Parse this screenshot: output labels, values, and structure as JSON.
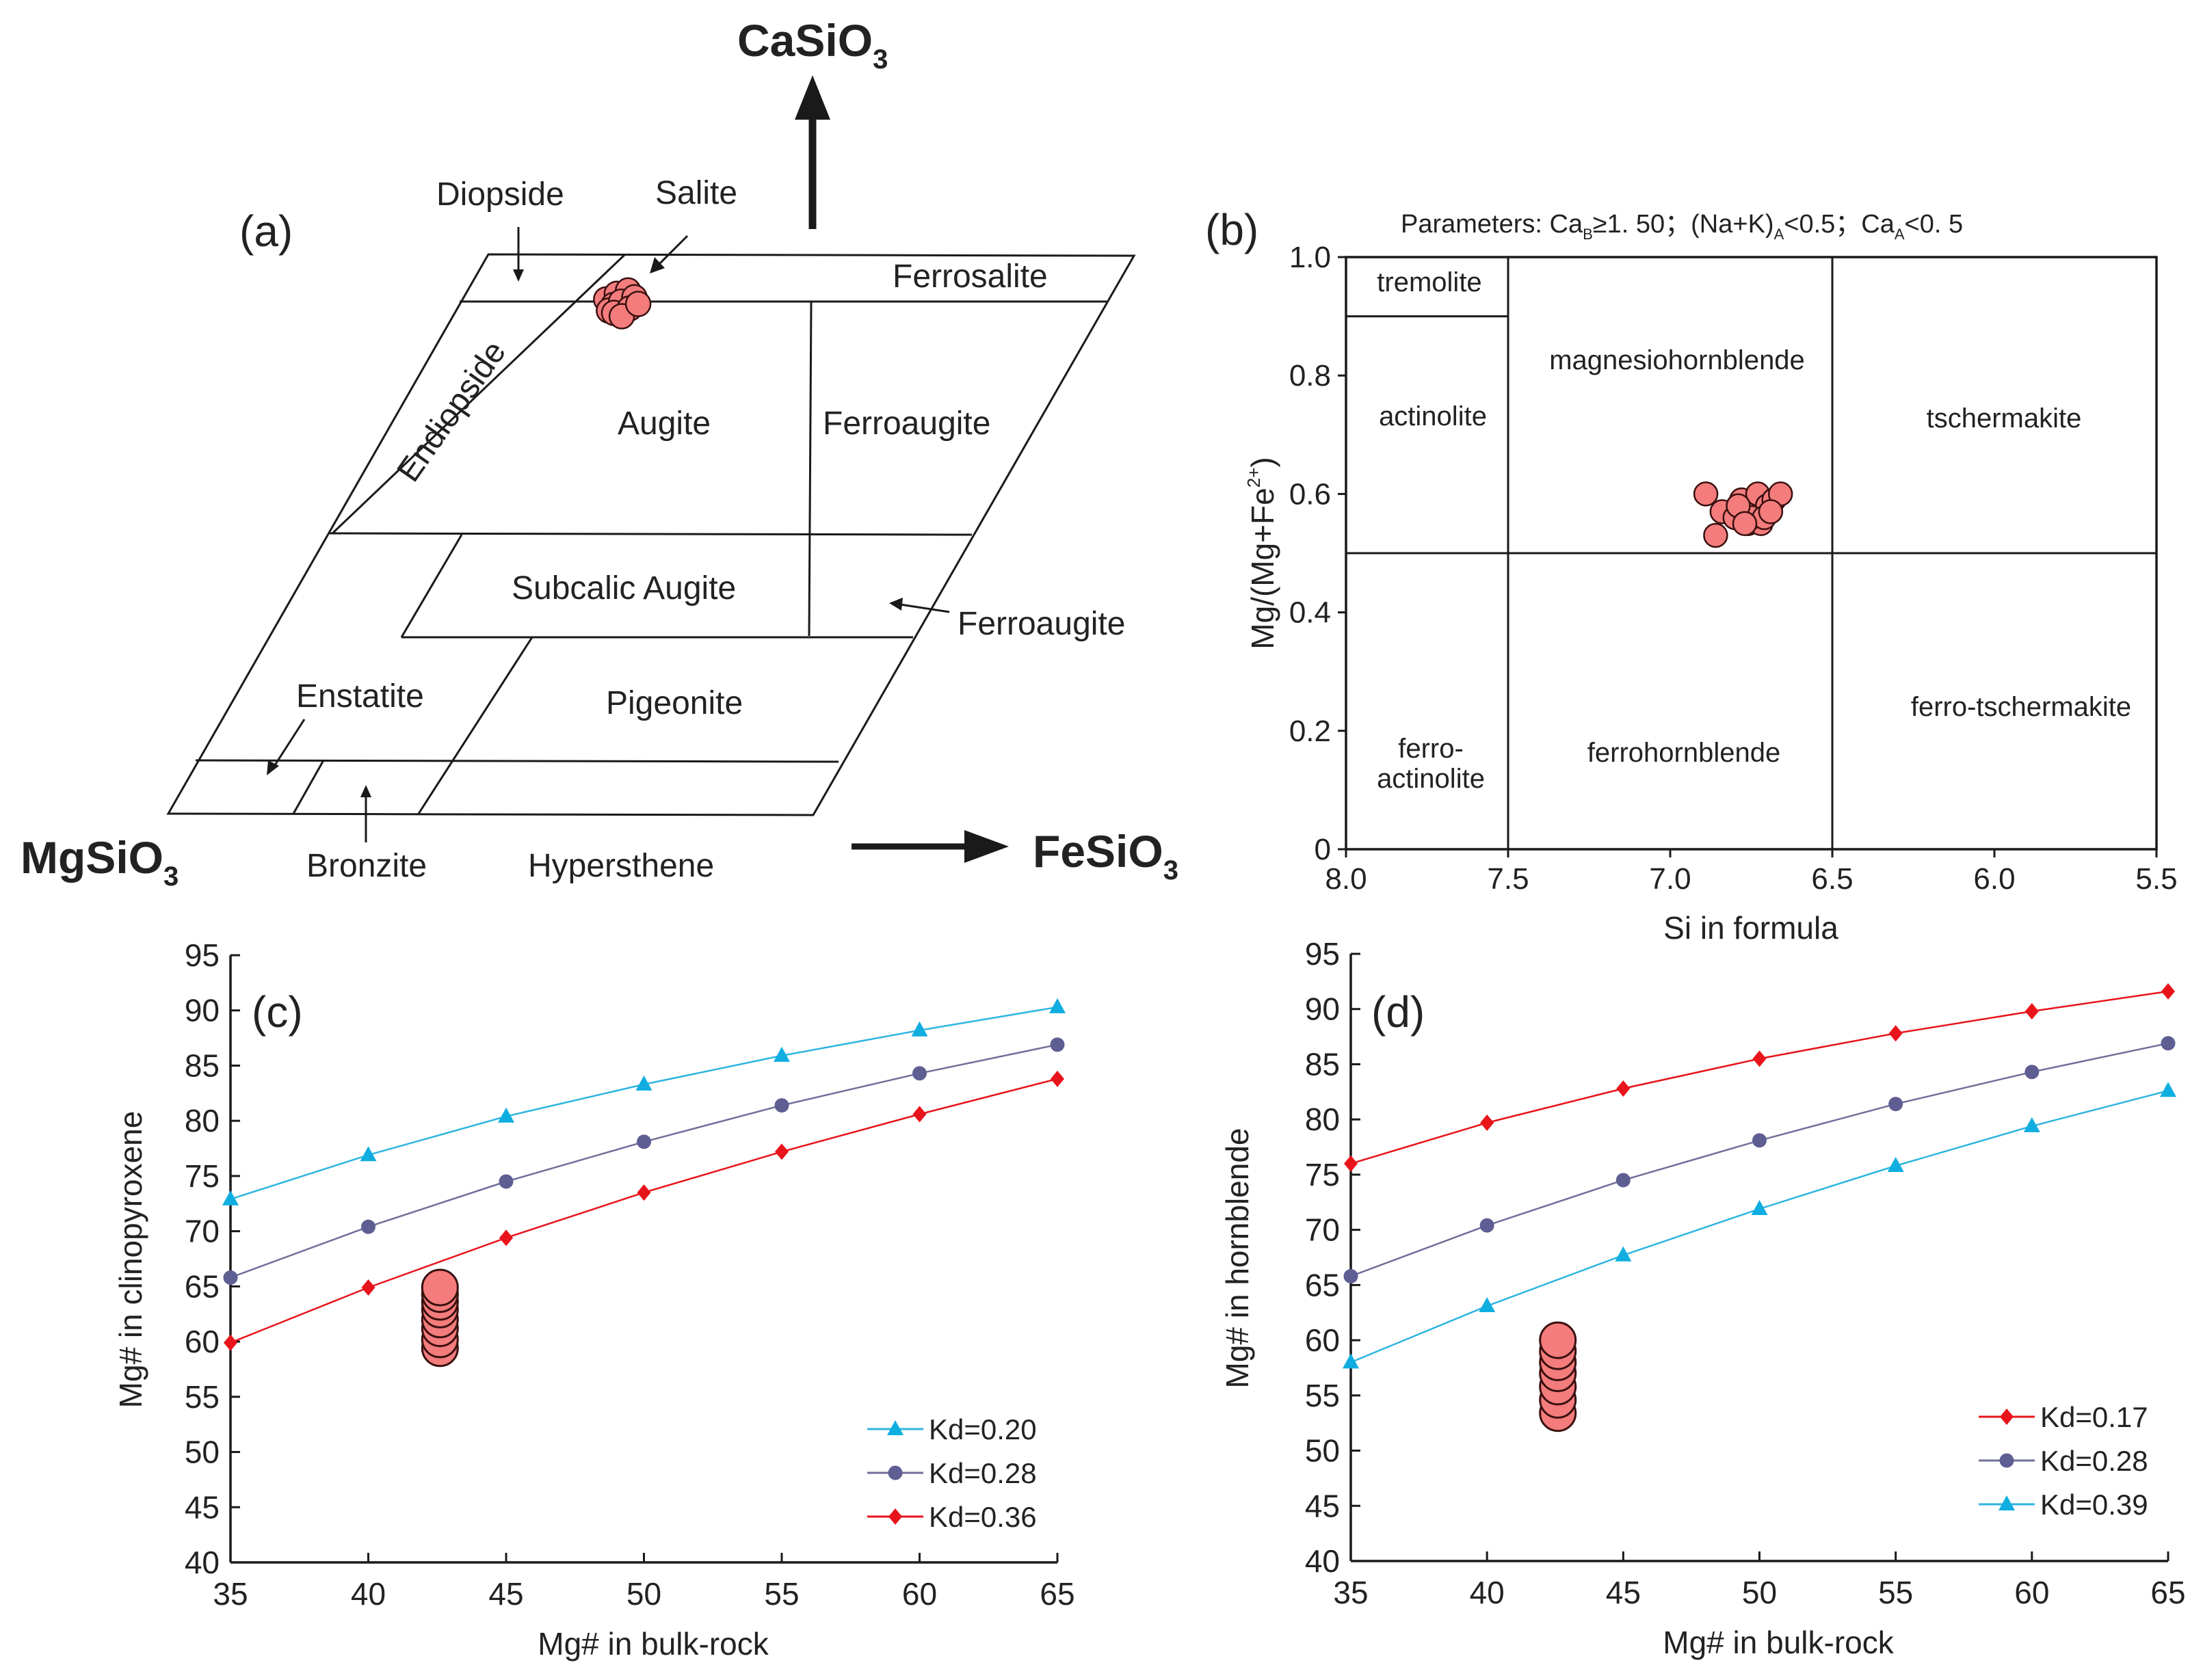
{
  "colors": {
    "sample_fill": "#F47C7C",
    "sample_stroke": "#3a1010",
    "red": "#E8141B",
    "purple": "#5E5E93",
    "cyan": "#10AEE0",
    "line_red": "#E8141B",
    "line_purple": "#6F6F9A",
    "line_cyan": "#2DB5E0"
  },
  "chart_data": [
    {
      "type": "scatter",
      "panel": "(a)",
      "kind": "pyroxene quadrilateral classification",
      "apices": {
        "top": "CaSiO",
        "left": "MgSiO",
        "right": "FeSiO",
        "subscript": "3"
      },
      "fields": {
        "diopside": "Diopside",
        "salite": "Salite",
        "ferrosalite": "Ferrosalite",
        "endiopside": "Endiopside",
        "augite": "Augite",
        "ferroaugite": "Ferroaugite",
        "subcalcic_augite": "Subcalic Augite",
        "ferroaugite_callout": "Ferroaugite",
        "enstatite": "Enstatite",
        "pigeonite": "Pigeonite",
        "bronzite": "Bronzite",
        "hypersthene": "Hypersthene"
      },
      "samples_wo_en_fs": [
        [
          46,
          42,
          12
        ],
        [
          46.5,
          41,
          12.5
        ],
        [
          45.5,
          41.5,
          13
        ],
        [
          46,
          40.5,
          13.5
        ],
        [
          45,
          42,
          13
        ],
        [
          46.8,
          40,
          13.2
        ],
        [
          45.8,
          40.8,
          13.4
        ],
        [
          44.8,
          41.6,
          13.6
        ],
        [
          46.2,
          39.6,
          14.2
        ],
        [
          45.2,
          40.2,
          14.6
        ],
        [
          44.5,
          41.0,
          14.5
        ],
        [
          45.6,
          39.4,
          15.0
        ]
      ]
    },
    {
      "type": "scatter",
      "panel": "(b)",
      "title_parts": [
        "Parameters: Ca",
        "B",
        "≥1. 50；(Na+K)",
        "A",
        "<0.5；Ca",
        "A",
        "<0. 5"
      ],
      "xlabel": "Si in formula",
      "ylabel_parts": [
        "Mg/(Mg+Fe",
        "2+",
        ")"
      ],
      "xlim": [
        8.0,
        5.5
      ],
      "ylim": [
        0,
        1.0
      ],
      "x_ticks": [
        "8.0",
        "7.5",
        "7.0",
        "6.5",
        "6.0",
        "5.5"
      ],
      "y_ticks": [
        "0",
        "0.2",
        "0.4",
        "0.6",
        "0.8",
        "1.0"
      ],
      "fields": {
        "tremolite": "tremolite",
        "actinolite": "actinolite",
        "magnesiohornblende": "magnesiohornblende",
        "tschermakite": "tschermakite",
        "ferro_actinolite_1": "ferro-",
        "ferro_actinolite_2": "actinolite",
        "ferrohornblende": "ferrohornblende",
        "ferro_tschermakite": "ferro-tschermakite"
      },
      "boundaries": {
        "si": [
          7.5,
          6.5
        ],
        "mg_ratio": 0.5,
        "tremolite_limit": 0.9
      },
      "points": [
        [
          6.89,
          0.6
        ],
        [
          6.86,
          0.53
        ],
        [
          6.84,
          0.57
        ],
        [
          6.8,
          0.56
        ],
        [
          6.78,
          0.59
        ],
        [
          6.76,
          0.55
        ],
        [
          6.74,
          0.57
        ],
        [
          6.73,
          0.6
        ],
        [
          6.72,
          0.55
        ],
        [
          6.7,
          0.58
        ],
        [
          6.68,
          0.59
        ],
        [
          6.75,
          0.56
        ],
        [
          6.71,
          0.56
        ],
        [
          6.79,
          0.58
        ],
        [
          6.66,
          0.6
        ],
        [
          6.77,
          0.55
        ],
        [
          6.69,
          0.57
        ]
      ]
    },
    {
      "type": "line",
      "panel": "(c)",
      "xlabel": "Mg# in bulk-rock",
      "ylabel": "Mg# in clinopyroxene",
      "xlim": [
        35,
        65
      ],
      "ylim": [
        40,
        95
      ],
      "x_ticks": [
        "35",
        "40",
        "45",
        "50",
        "55",
        "60",
        "65"
      ],
      "y_ticks": [
        "40",
        "45",
        "50",
        "55",
        "60",
        "65",
        "70",
        "75",
        "80",
        "85",
        "90",
        "95"
      ],
      "x": [
        35,
        40,
        45,
        50,
        55,
        60,
        65
      ],
      "series": [
        {
          "name": "Kd=0.20",
          "marker": "triangle",
          "color": "cyan",
          "values": [
            72.9,
            76.9,
            80.4,
            83.3,
            85.9,
            88.2,
            90.3
          ]
        },
        {
          "name": "Kd=0.28",
          "marker": "circle",
          "color": "purple",
          "values": [
            65.8,
            70.4,
            74.5,
            78.1,
            81.4,
            84.3,
            86.9
          ]
        },
        {
          "name": "Kd=0.36",
          "marker": "diamond",
          "color": "red",
          "values": [
            59.9,
            64.9,
            69.4,
            73.5,
            77.2,
            80.6,
            83.8
          ]
        }
      ],
      "samples": [
        [
          42.6,
          59.4
        ],
        [
          42.6,
          60.2
        ],
        [
          42.6,
          61.2
        ],
        [
          42.6,
          62.0
        ],
        [
          42.6,
          62.9
        ],
        [
          42.6,
          63.6
        ],
        [
          42.6,
          64.3
        ],
        [
          42.6,
          64.9
        ]
      ]
    },
    {
      "type": "line",
      "panel": "(d)",
      "xlabel": "Mg# in bulk-rock",
      "ylabel": "Mg# in hornblende",
      "xlim": [
        35,
        65
      ],
      "ylim": [
        40,
        95
      ],
      "x_ticks": [
        "35",
        "40",
        "45",
        "50",
        "55",
        "60",
        "65"
      ],
      "y_ticks": [
        "40",
        "45",
        "50",
        "55",
        "60",
        "65",
        "70",
        "75",
        "80",
        "85",
        "90",
        "95"
      ],
      "x": [
        35,
        40,
        45,
        50,
        55,
        60,
        65
      ],
      "series": [
        {
          "name": "Kd=0.17",
          "marker": "diamond",
          "color": "red",
          "values": [
            76.0,
            79.7,
            82.8,
            85.5,
            87.8,
            89.8,
            91.6
          ]
        },
        {
          "name": "Kd=0.28",
          "marker": "circle",
          "color": "purple",
          "values": [
            65.8,
            70.4,
            74.5,
            78.1,
            81.4,
            84.3,
            86.9
          ]
        },
        {
          "name": "Kd=0.39",
          "marker": "triangle",
          "color": "cyan",
          "values": [
            58.0,
            63.1,
            67.7,
            71.9,
            75.8,
            79.4,
            82.6
          ]
        }
      ],
      "samples": [
        [
          42.6,
          53.4
        ],
        [
          42.6,
          54.6
        ],
        [
          42.6,
          55.8
        ],
        [
          42.6,
          57.0
        ],
        [
          42.6,
          58.0
        ],
        [
          42.6,
          59.0
        ],
        [
          42.6,
          60.0
        ]
      ]
    }
  ]
}
